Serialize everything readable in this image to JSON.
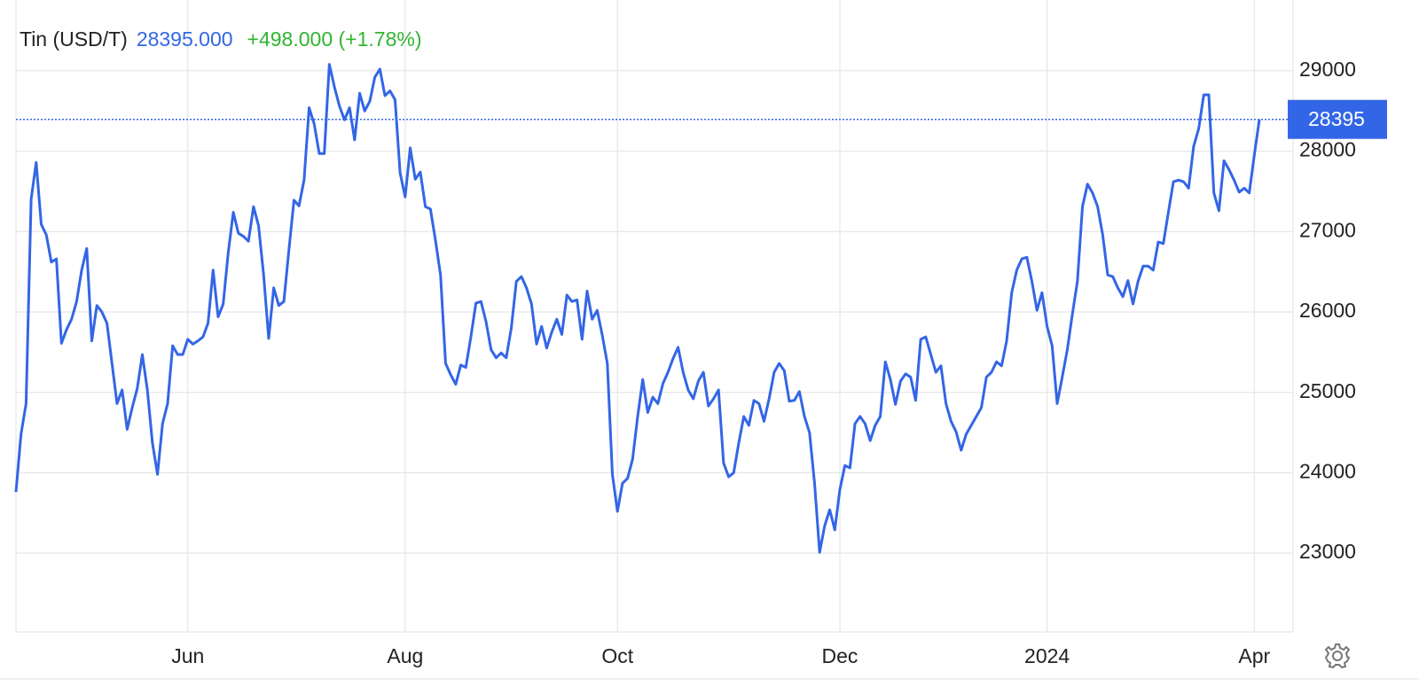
{
  "chart_data": {
    "type": "line",
    "title": "Tin (USD/T)",
    "last_price": "28395.000",
    "change": "+498.000 (+1.78%)",
    "price_line": 28395,
    "ylim": [
      22020,
      29880
    ],
    "yticks": [
      23000,
      24000,
      25000,
      26000,
      27000,
      28000,
      29000
    ],
    "grid": true,
    "categories": [
      null,
      null,
      null,
      null,
      null,
      null,
      null,
      null,
      null,
      null,
      null,
      null,
      null,
      null,
      null,
      null,
      null,
      null,
      null,
      null,
      null,
      null,
      null,
      null,
      null,
      null,
      null,
      null,
      null,
      null,
      null,
      null,
      null,
      null,
      "Jun",
      null,
      null,
      null,
      null,
      null,
      null,
      null,
      null,
      null,
      null,
      null,
      null,
      null,
      null,
      null,
      null,
      null,
      null,
      null,
      null,
      null,
      null,
      null,
      null,
      null,
      null,
      null,
      null,
      null,
      null,
      null,
      null,
      null,
      null,
      null,
      null,
      null,
      null,
      null,
      null,
      null,
      null,
      "Aug",
      null,
      null,
      null,
      null,
      null,
      null,
      null,
      null,
      null,
      null,
      null,
      null,
      null,
      null,
      null,
      null,
      null,
      null,
      null,
      null,
      null,
      null,
      null,
      null,
      null,
      null,
      null,
      null,
      null,
      null,
      null,
      null,
      null,
      null,
      null,
      null,
      null,
      null,
      null,
      null,
      null,
      "Oct",
      null,
      null,
      null,
      null,
      null,
      null,
      null,
      null,
      null,
      null,
      null,
      null,
      null,
      null,
      null,
      null,
      null,
      null,
      null,
      null,
      null,
      null,
      null,
      null,
      null,
      null,
      null,
      null,
      null,
      null,
      null,
      null,
      null,
      null,
      null,
      null,
      null,
      null,
      null,
      null,
      null,
      null,
      null,
      "Dec",
      null,
      null,
      null,
      null,
      null,
      null,
      null,
      null,
      null,
      null,
      null,
      null,
      null,
      null,
      null,
      null,
      null,
      null,
      null,
      null,
      null,
      null,
      null,
      null,
      null,
      null,
      null,
      null,
      null,
      null,
      null,
      null,
      null,
      null,
      null,
      null,
      null,
      null,
      null,
      null,
      "2024",
      null,
      null,
      null,
      null,
      null,
      null,
      null,
      null,
      null,
      null,
      null,
      null,
      null,
      null,
      null,
      null,
      null,
      null,
      null,
      null,
      null,
      null,
      null,
      null,
      null,
      null,
      null,
      null,
      null,
      null,
      null,
      null,
      null,
      null,
      null,
      null,
      null,
      null,
      null,
      null,
      "Apr",
      null
    ],
    "series": [
      {
        "name": "Tin (USD/T)",
        "color": "#3366e6",
        "values": [
          23760,
          24480,
          24860,
          27400,
          27860,
          27090,
          26960,
          26620,
          26660,
          25610,
          25780,
          25910,
          26130,
          26520,
          26790,
          25640,
          26080,
          26000,
          25860,
          25360,
          24860,
          25030,
          24540,
          24810,
          25050,
          25470,
          25030,
          24370,
          23980,
          24610,
          24860,
          25580,
          25470,
          25470,
          25660,
          25600,
          25640,
          25690,
          25860,
          26520,
          25940,
          26100,
          26740,
          27240,
          26980,
          26940,
          26880,
          27310,
          27070,
          26460,
          25670,
          26300,
          26080,
          26130,
          26770,
          27390,
          27320,
          27640,
          28540,
          28340,
          27970,
          27970,
          29080,
          28800,
          28560,
          28390,
          28540,
          28140,
          28720,
          28500,
          28620,
          28920,
          29020,
          28690,
          28750,
          28640,
          27730,
          27430,
          28040,
          27650,
          27740,
          27310,
          27280,
          26890,
          26460,
          25360,
          25220,
          25100,
          25340,
          25310,
          25690,
          26110,
          26130,
          25880,
          25530,
          25430,
          25490,
          25430,
          25800,
          26380,
          26440,
          26300,
          26100,
          25600,
          25820,
          25550,
          25750,
          25910,
          25720,
          26210,
          26130,
          26150,
          25660,
          26260,
          25910,
          26020,
          25710,
          25360,
          23980,
          23520,
          23870,
          23930,
          24170,
          24700,
          25160,
          24750,
          24940,
          24860,
          25110,
          25250,
          25420,
          25560,
          25250,
          25030,
          24920,
          25140,
          25250,
          24830,
          24920,
          25030,
          24120,
          23950,
          24000,
          24370,
          24700,
          24590,
          24900,
          24860,
          24640,
          24920,
          25250,
          25360,
          25270,
          24890,
          24900,
          25010,
          24700,
          24500,
          23870,
          23010,
          23340,
          23540,
          23290,
          23790,
          24090,
          24060,
          24610,
          24700,
          24610,
          24400,
          24590,
          24700,
          25380,
          25160,
          24850,
          25140,
          25230,
          25190,
          24900,
          25660,
          25690,
          25470,
          25250,
          25330,
          24860,
          24640,
          24510,
          24280,
          24480,
          24590,
          24700,
          24810,
          25190,
          25250,
          25380,
          25330,
          25640,
          26240,
          26520,
          26660,
          26680,
          26380,
          26020,
          26240,
          25820,
          25580,
          24860,
          25190,
          25530,
          25970,
          26380,
          27310,
          27590,
          27480,
          27310,
          26960,
          26460,
          26440,
          26300,
          26190,
          26390,
          26100,
          26380,
          26570,
          26570,
          26520,
          26870,
          26850,
          27240,
          27620,
          27640,
          27620,
          27540,
          28060,
          28280,
          28700,
          28700,
          27480,
          27260,
          27880,
          27770,
          27640,
          27490,
          27540,
          27480,
          27950,
          28395
        ]
      }
    ]
  }
}
